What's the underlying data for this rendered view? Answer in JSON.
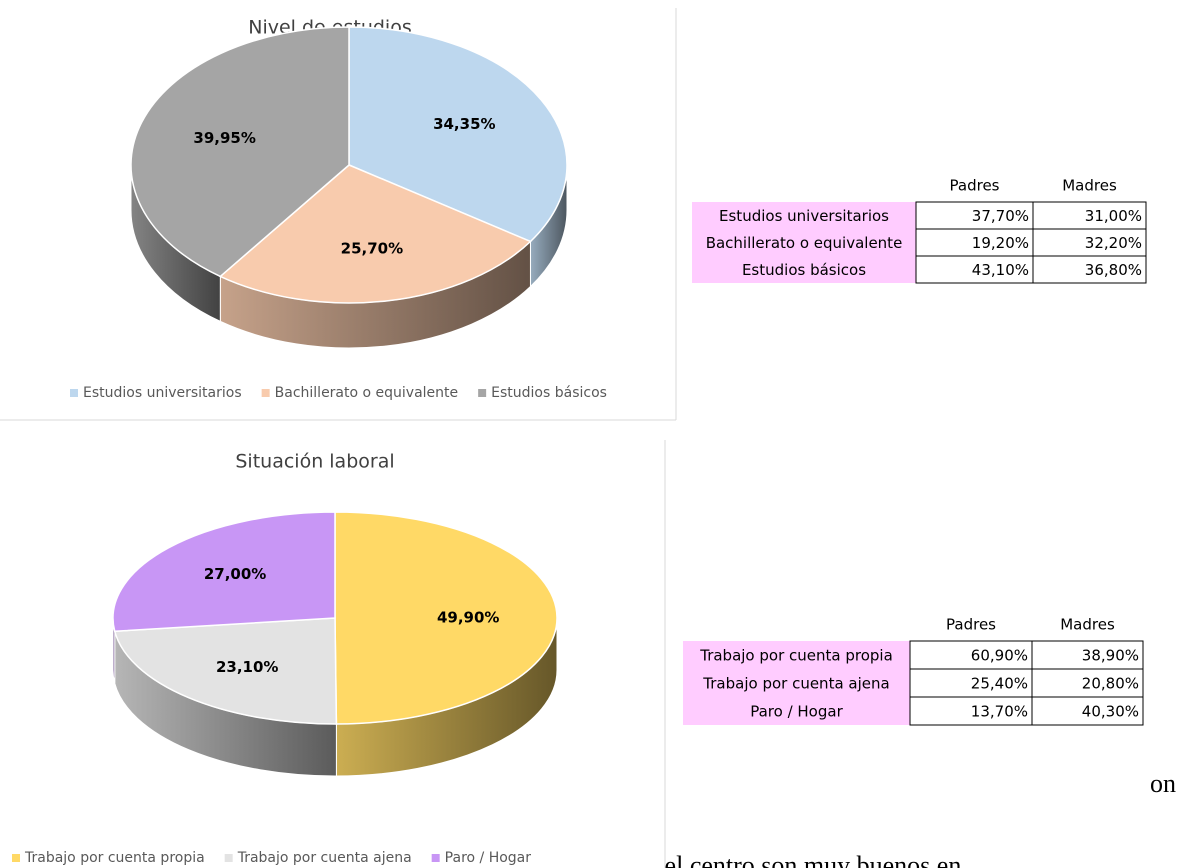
{
  "chart_data": [
    {
      "type": "pie3d",
      "title": "Nivel de estudios",
      "categories": [
        "Estudios universitarios",
        "Bachillerato o equivalente",
        "Estudios básicos"
      ],
      "values": [
        34.35,
        25.7,
        39.95
      ],
      "value_labels": [
        "34,35%",
        "25,70%",
        "39,95%"
      ],
      "colors": [
        "#bdd7ee",
        "#f8cbad",
        "#a5a5a5"
      ],
      "legend": "bottom"
    },
    {
      "type": "pie3d",
      "title": "Situación laboral",
      "categories": [
        "Trabajo por cuenta propia",
        "Trabajo por cuenta ajena",
        "Paro / Hogar"
      ],
      "values": [
        49.9,
        23.1,
        27.0
      ],
      "value_labels": [
        "49,90%",
        "23,10%",
        "27,00%"
      ],
      "colors": [
        "#ffd966",
        "#e3e3e3",
        "#c896f5"
      ],
      "legend": "bottom"
    }
  ],
  "tables": [
    {
      "header": [
        "Padres",
        "Madres"
      ],
      "rows": [
        [
          "Estudios universitarios",
          "37,70%",
          "31,00%"
        ],
        [
          "Bachillerato o equivalente",
          "19,20%",
          "32,20%"
        ],
        [
          "Estudios básicos",
          "43,10%",
          "36,80%"
        ]
      ]
    },
    {
      "header": [
        "Padres",
        "Madres"
      ],
      "rows": [
        [
          "Trabajo por cuenta propia",
          "60,90%",
          "38,90%"
        ],
        [
          "Trabajo por cuenta ajena",
          "25,40%",
          "20,80%"
        ],
        [
          "Paro / Hogar",
          "13,70%",
          "40,30%"
        ]
      ]
    }
  ],
  "body_text": [
    "on",
    "muy satisfactorias. El interés y la relación de las familias con el centro son muy buenos en"
  ]
}
